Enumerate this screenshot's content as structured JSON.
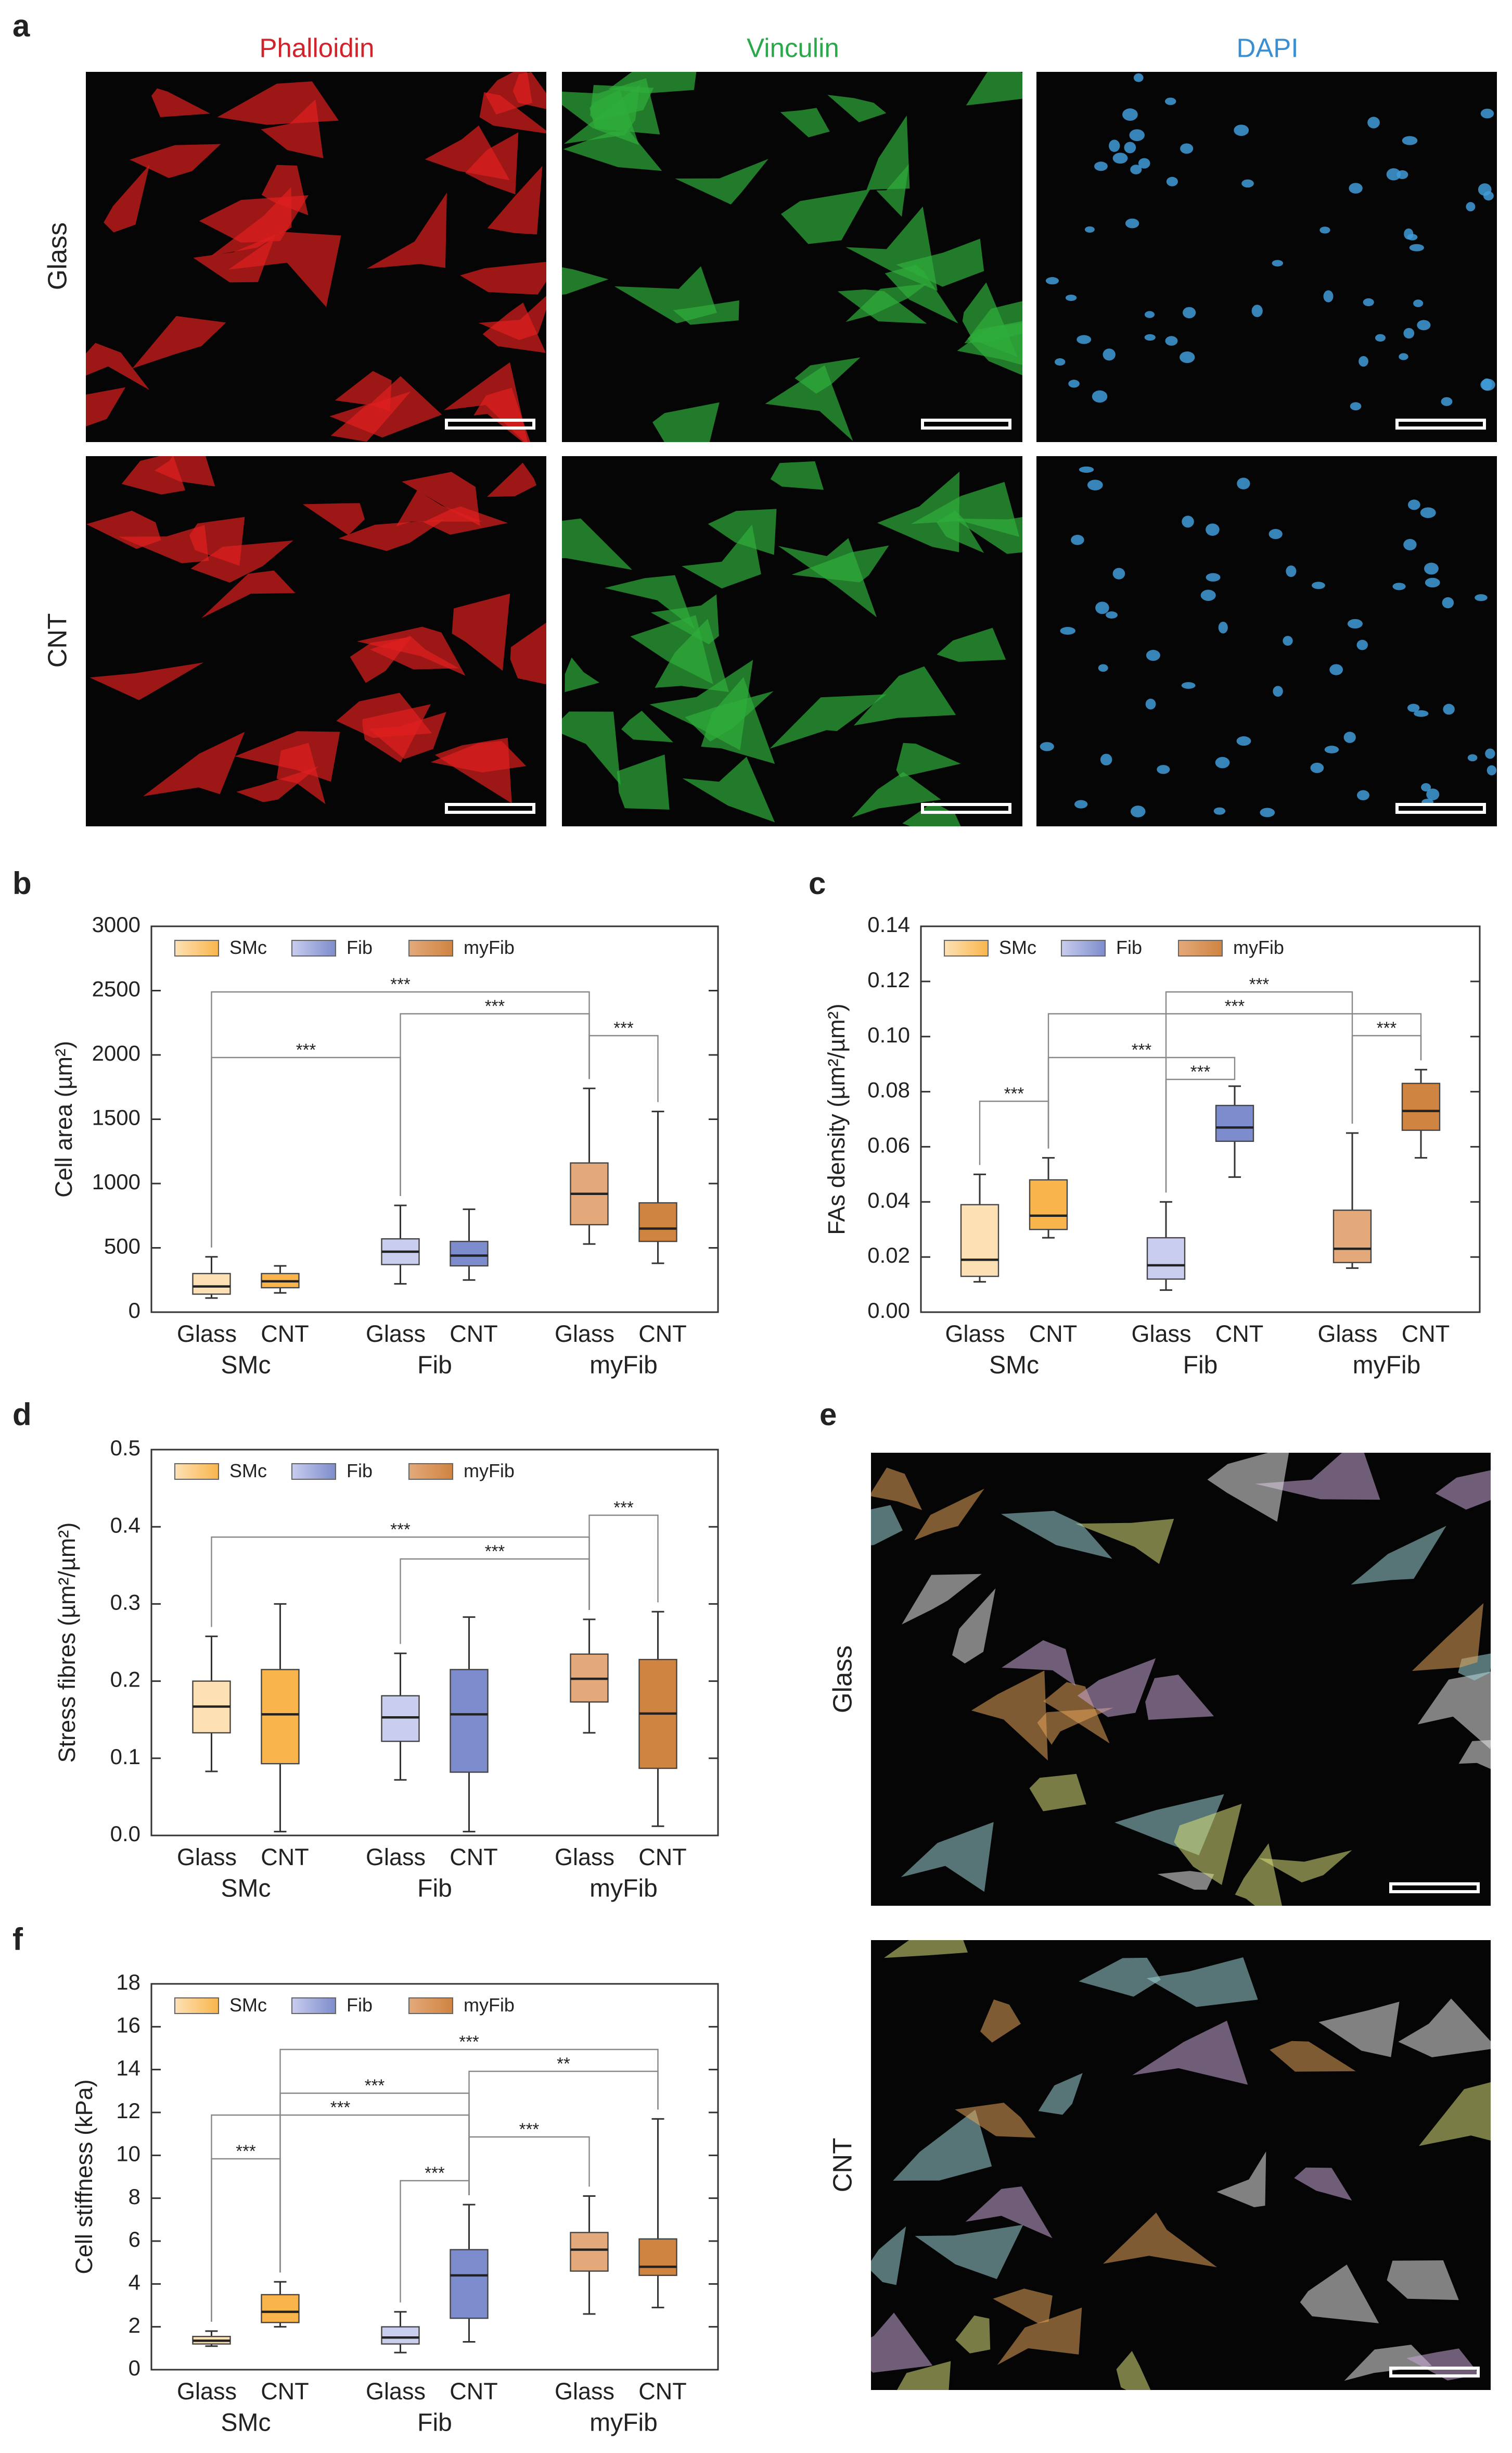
{
  "panel_letters": [
    "a",
    "b",
    "c",
    "d",
    "e",
    "f"
  ],
  "panel_a": {
    "columns": [
      "Phalloidin",
      "Vinculin",
      "DAPI"
    ],
    "column_colors": [
      "#d2232a",
      "#2aa84a",
      "#3b8fd0"
    ],
    "rows": [
      "Glass",
      "CNT"
    ]
  },
  "panel_e": {
    "rows": [
      "Glass",
      "CNT"
    ]
  },
  "chart_data": [
    {
      "type": "box",
      "ylabel": "Cell area (µm²)",
      "ylim": [
        0,
        3000
      ],
      "yticks": [
        0,
        500,
        1000,
        1500,
        2000,
        2500,
        3000
      ],
      "categories": [
        "SMc",
        "Fib",
        "myFib"
      ],
      "conditions": [
        "Glass",
        "CNT"
      ],
      "series": [
        {
          "name": "SMc",
          "colors": [
            "#fde1b5",
            "#f9b54c"
          ],
          "values": [
            {
              "min": 110,
              "q1": 140,
              "median": 200,
              "q3": 300,
              "max": 430
            },
            {
              "min": 150,
              "q1": 190,
              "median": 240,
              "q3": 300,
              "max": 360
            }
          ]
        },
        {
          "name": "Fib",
          "colors": [
            "#c9cdee",
            "#7d8ccc"
          ],
          "values": [
            {
              "min": 220,
              "q1": 370,
              "median": 470,
              "q3": 570,
              "max": 830
            },
            {
              "min": 250,
              "q1": 360,
              "median": 440,
              "q3": 550,
              "max": 800
            }
          ]
        },
        {
          "name": "myFib",
          "colors": [
            "#e4a97a",
            "#cf8441"
          ],
          "values": [
            {
              "min": 530,
              "q1": 680,
              "median": 920,
              "q3": 1160,
              "max": 1740
            },
            {
              "min": 380,
              "q1": 550,
              "median": 650,
              "q3": 850,
              "max": 1560
            }
          ]
        }
      ],
      "brackets": [
        {
          "from": [
            0,
            0
          ],
          "to": [
            1,
            0
          ],
          "label": "***"
        },
        {
          "from": [
            2,
            0
          ],
          "to": [
            2,
            1
          ],
          "label": "***"
        },
        {
          "from": [
            1,
            0
          ],
          "to": [
            2,
            0
          ],
          "label": "***"
        },
        {
          "from": [
            0,
            0
          ],
          "to": [
            2,
            0
          ],
          "label": "***"
        }
      ]
    },
    {
      "type": "box",
      "ylabel": "FAs density (µm²/µm²)",
      "ylim": [
        0,
        0.14
      ],
      "yticks": [
        {
          "value": 0,
          "label": "0.00"
        },
        0.02,
        0.04,
        0.06,
        0.08,
        {
          "value": 0.1,
          "label": "0.10"
        },
        0.12,
        0.14
      ],
      "categories": [
        "SMc",
        "Fib",
        "myFib"
      ],
      "conditions": [
        "Glass",
        "CNT"
      ],
      "series": [
        {
          "name": "SMc",
          "colors": [
            "#fde1b5",
            "#f9b54c"
          ],
          "values": [
            {
              "min": 0.011,
              "q1": 0.013,
              "median": 0.019,
              "q3": 0.039,
              "max": 0.05
            },
            {
              "min": 0.027,
              "q1": 0.03,
              "median": 0.035,
              "q3": 0.048,
              "max": 0.056
            }
          ]
        },
        {
          "name": "Fib",
          "colors": [
            "#c9cdee",
            "#7d8ccc"
          ],
          "values": [
            {
              "min": 0.008,
              "q1": 0.012,
              "median": 0.017,
              "q3": 0.027,
              "max": 0.04
            },
            {
              "min": 0.049,
              "q1": 0.062,
              "median": 0.067,
              "q3": 0.075,
              "max": 0.082
            }
          ]
        },
        {
          "name": "myFib",
          "colors": [
            "#e4a97a",
            "#cf8441"
          ],
          "values": [
            {
              "min": 0.016,
              "q1": 0.018,
              "median": 0.023,
              "q3": 0.037,
              "max": 0.065
            },
            {
              "min": 0.056,
              "q1": 0.066,
              "median": 0.073,
              "q3": 0.083,
              "max": 0.088
            }
          ]
        }
      ],
      "brackets": [
        {
          "from": [
            0,
            0
          ],
          "to": [
            0,
            1
          ],
          "label": "***"
        },
        {
          "from": [
            1,
            0
          ],
          "to": [
            1,
            1
          ],
          "label": "***"
        },
        {
          "from": [
            0,
            1
          ],
          "to": [
            1,
            1
          ],
          "label": "***"
        },
        {
          "from": [
            2,
            0
          ],
          "to": [
            2,
            1
          ],
          "label": "***"
        },
        {
          "from": [
            0,
            1
          ],
          "to": [
            2,
            1
          ],
          "label": "***"
        },
        {
          "from": [
            1,
            0
          ],
          "to": [
            2,
            0
          ],
          "label": "***"
        }
      ]
    },
    {
      "type": "box",
      "ylabel": "Stress fibres (µm²/µm²)",
      "ylim": [
        0,
        0.5
      ],
      "yticks": [
        {
          "value": 0,
          "label": "0.0"
        },
        0.1,
        0.2,
        0.3,
        0.4,
        0.5
      ],
      "categories": [
        "SMc",
        "Fib",
        "myFib"
      ],
      "conditions": [
        "Glass",
        "CNT"
      ],
      "series": [
        {
          "name": "SMc",
          "colors": [
            "#fde1b5",
            "#f9b54c"
          ],
          "values": [
            {
              "min": 0.083,
              "q1": 0.133,
              "median": 0.167,
              "q3": 0.2,
              "max": 0.258
            },
            {
              "min": 0.005,
              "q1": 0.093,
              "median": 0.157,
              "q3": 0.215,
              "max": 0.3
            }
          ]
        },
        {
          "name": "Fib",
          "colors": [
            "#c9cdee",
            "#7d8ccc"
          ],
          "values": [
            {
              "min": 0.072,
              "q1": 0.122,
              "median": 0.153,
              "q3": 0.181,
              "max": 0.236
            },
            {
              "min": 0.005,
              "q1": 0.082,
              "median": 0.157,
              "q3": 0.215,
              "max": 0.283
            }
          ]
        },
        {
          "name": "myFib",
          "colors": [
            "#e4a97a",
            "#cf8441"
          ],
          "values": [
            {
              "min": 0.133,
              "q1": 0.173,
              "median": 0.203,
              "q3": 0.235,
              "max": 0.28
            },
            {
              "min": 0.012,
              "q1": 0.087,
              "median": 0.158,
              "q3": 0.228,
              "max": 0.29
            }
          ]
        }
      ],
      "brackets": [
        {
          "from": [
            1,
            0
          ],
          "to": [
            2,
            0
          ],
          "label": "***"
        },
        {
          "from": [
            0,
            0
          ],
          "to": [
            2,
            0
          ],
          "label": "***"
        },
        {
          "from": [
            2,
            0
          ],
          "to": [
            2,
            1
          ],
          "label": "***"
        }
      ]
    },
    {
      "type": "box",
      "ylabel": "Cell stiffness (kPa)",
      "ylim": [
        0,
        18
      ],
      "yticks": [
        0,
        2,
        4,
        6,
        8,
        10,
        12,
        14,
        16,
        18
      ],
      "categories": [
        "SMc",
        "Fib",
        "myFib"
      ],
      "conditions": [
        "Glass",
        "CNT"
      ],
      "series": [
        {
          "name": "SMc",
          "colors": [
            "#fde1b5",
            "#f9b54c"
          ],
          "values": [
            {
              "min": 1.1,
              "q1": 1.2,
              "median": 1.35,
              "q3": 1.55,
              "max": 1.8
            },
            {
              "min": 2,
              "q1": 2.2,
              "median": 2.7,
              "q3": 3.5,
              "max": 4.1
            }
          ]
        },
        {
          "name": "Fib",
          "colors": [
            "#c9cdee",
            "#7d8ccc"
          ],
          "values": [
            {
              "min": 0.8,
              "q1": 1.2,
              "median": 1.5,
              "q3": 2,
              "max": 2.7
            },
            {
              "min": 1.3,
              "q1": 2.4,
              "median": 4.4,
              "q3": 5.6,
              "max": 7.7
            }
          ]
        },
        {
          "name": "myFib",
          "colors": [
            "#e4a97a",
            "#cf8441"
          ],
          "values": [
            {
              "min": 2.6,
              "q1": 4.6,
              "median": 5.6,
              "q3": 6.4,
              "max": 8.1
            },
            {
              "min": 2.9,
              "q1": 4.4,
              "median": 4.8,
              "q3": 6.1,
              "max": 11.7
            }
          ]
        }
      ],
      "brackets": [
        {
          "from": [
            1,
            0
          ],
          "to": [
            1,
            1
          ],
          "label": "***"
        },
        {
          "from": [
            0,
            0
          ],
          "to": [
            0,
            1
          ],
          "label": "***"
        },
        {
          "from": [
            1,
            1
          ],
          "to": [
            2,
            0
          ],
          "label": "***"
        },
        {
          "from": [
            0,
            0
          ],
          "to": [
            1,
            1
          ],
          "label": "***"
        },
        {
          "from": [
            0,
            1
          ],
          "to": [
            1,
            1
          ],
          "label": "***"
        },
        {
          "from": [
            1,
            1
          ],
          "to": [
            2,
            1
          ],
          "label": "**"
        },
        {
          "from": [
            0,
            1
          ],
          "to": [
            2,
            1
          ],
          "label": "***"
        }
      ]
    }
  ]
}
